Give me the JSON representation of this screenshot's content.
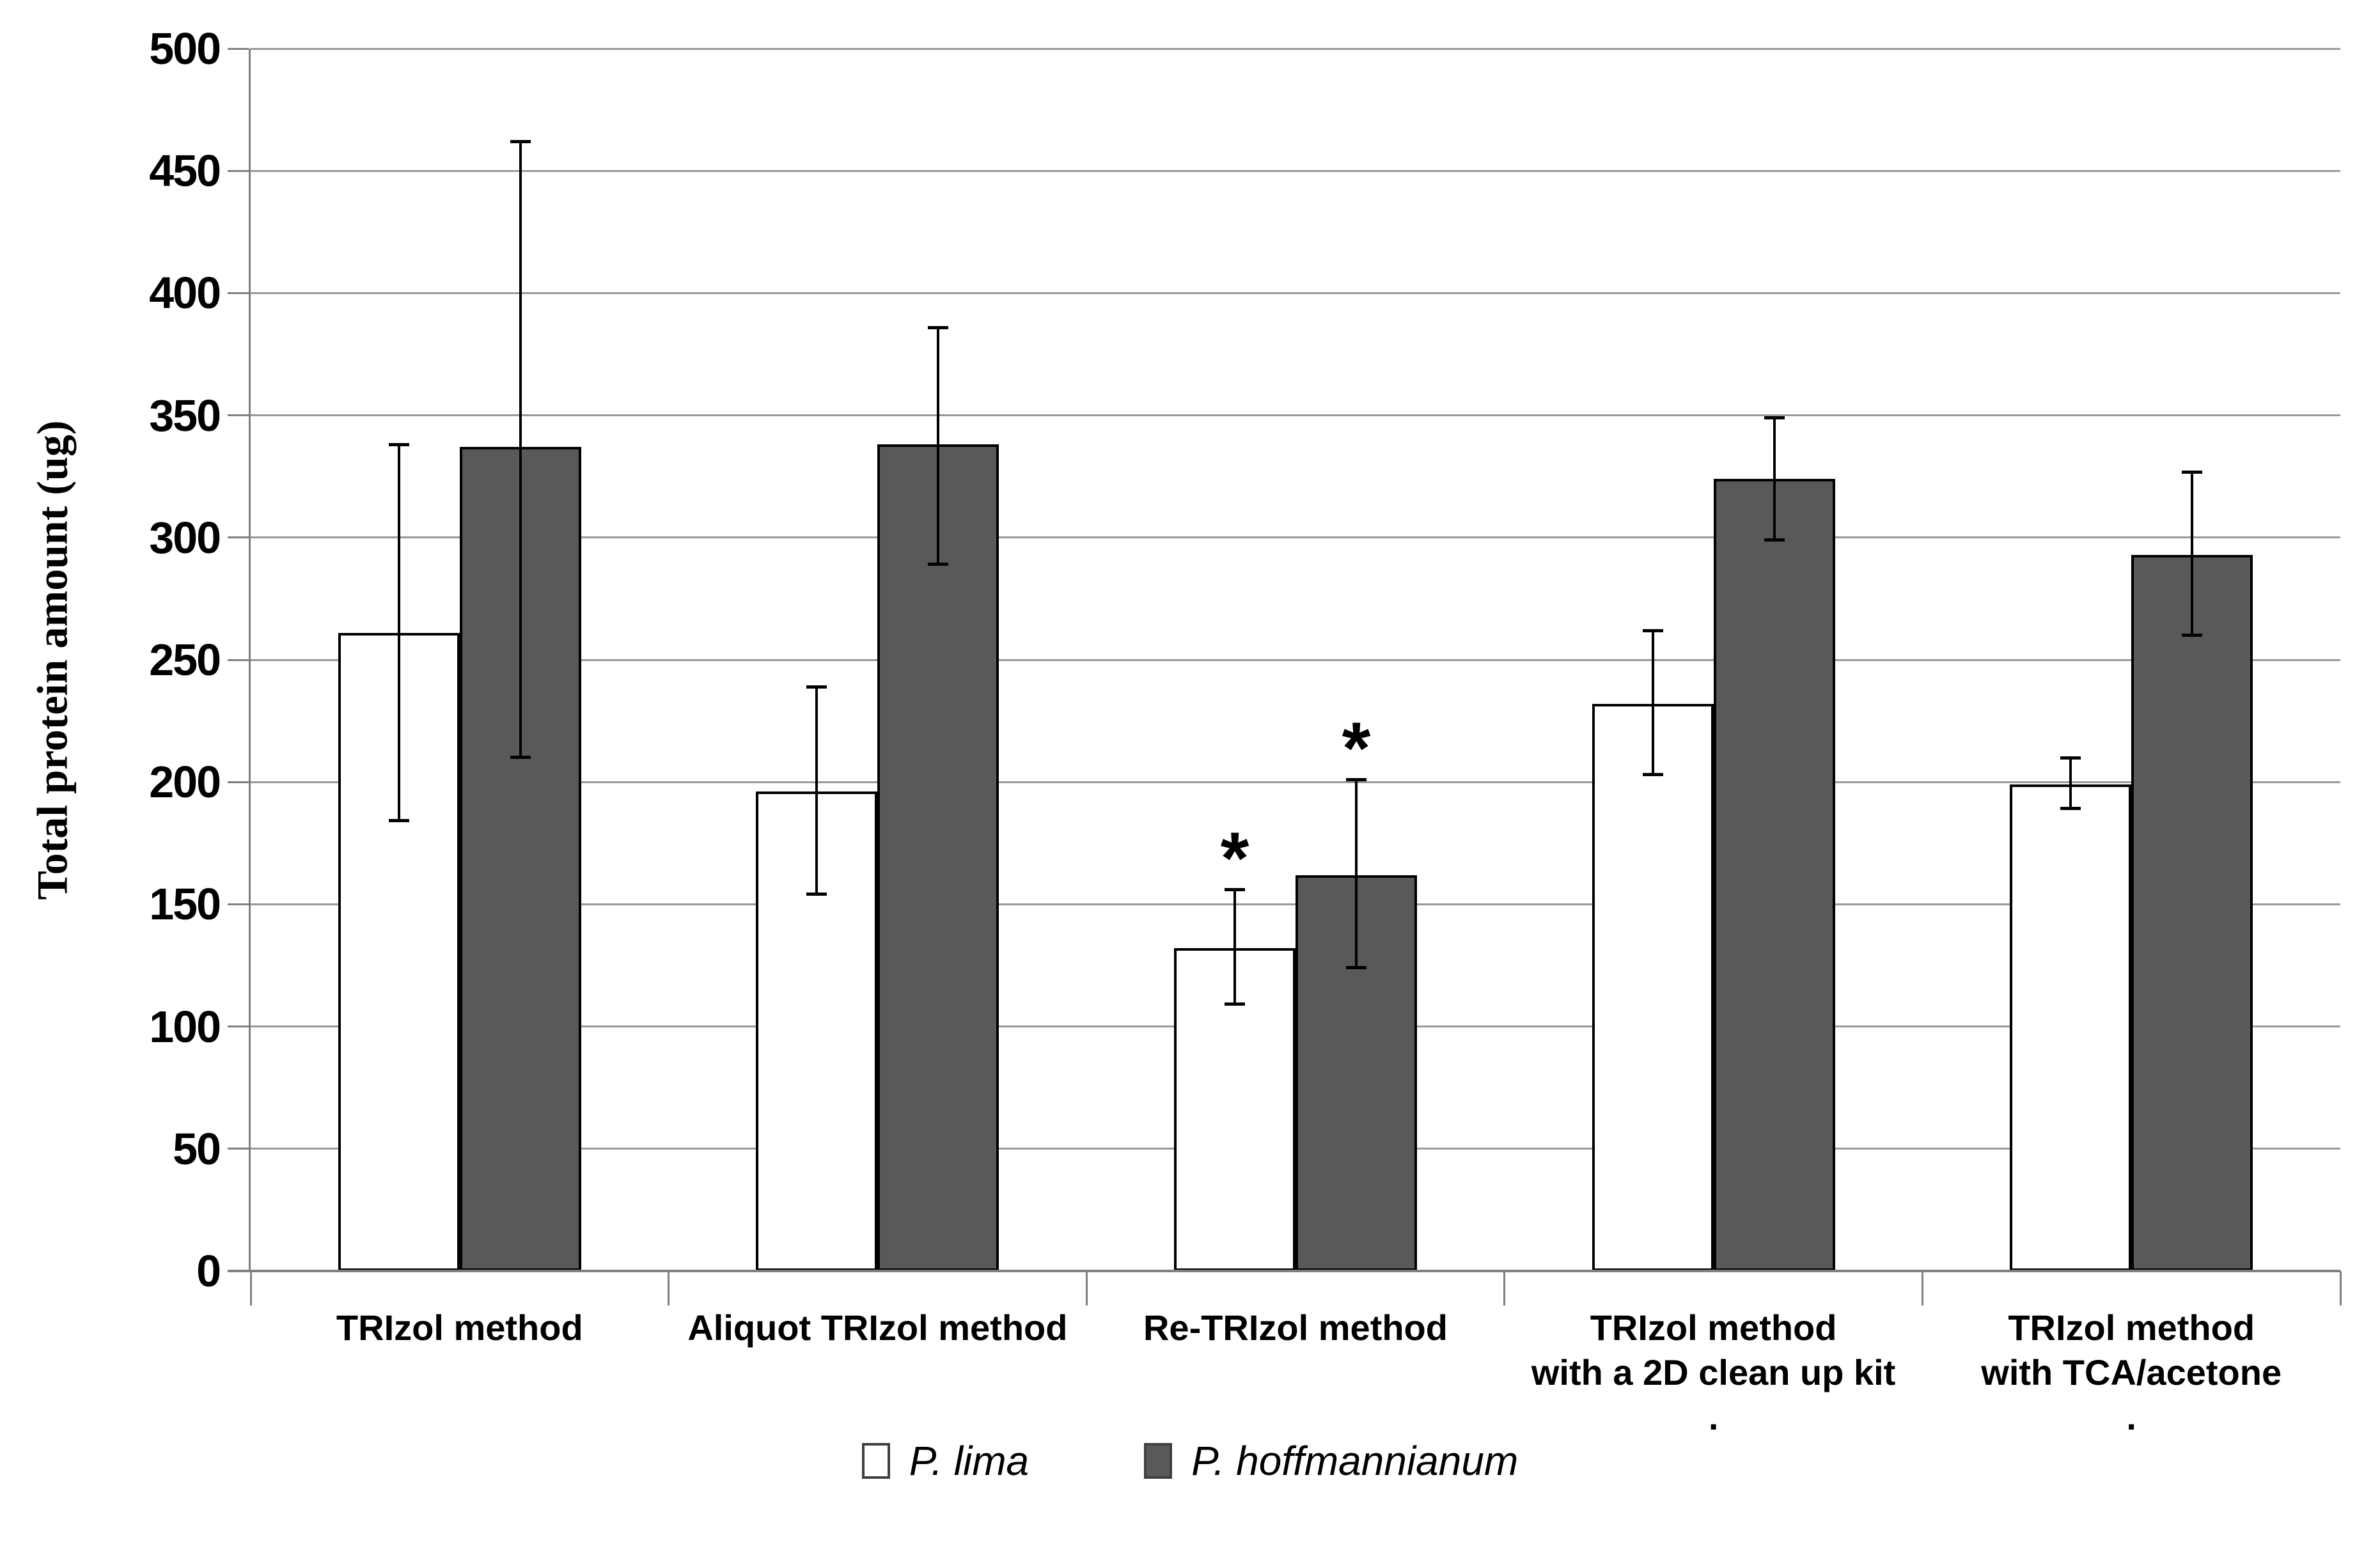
{
  "chart_data": {
    "type": "bar",
    "title": "",
    "xlabel": "",
    "ylabel": "Total protein amount (ug)",
    "ylim": [
      0,
      500
    ],
    "ytick_step": 50,
    "grid": true,
    "legend_position": "bottom",
    "significance_marker": "*",
    "categories": [
      [
        "TRIzol method"
      ],
      [
        "Aliquot TRIzol method"
      ],
      [
        "Re-TRIzol method"
      ],
      [
        "TRIzol method",
        "with a 2D clean up kit",
        "."
      ],
      [
        "TRIzol method",
        "with TCA/acetone",
        "."
      ]
    ],
    "series": [
      {
        "name": "P. lima",
        "fill": "#FFFFFF",
        "border": "#000000",
        "values": [
          261,
          196,
          132,
          232,
          199
        ],
        "err_low": [
          184,
          154,
          109,
          203,
          189
        ],
        "err_high": [
          338,
          239,
          156,
          262,
          210
        ],
        "significant": [
          false,
          false,
          true,
          false,
          false
        ]
      },
      {
        "name": "P. hoffmannianum",
        "fill": "#595959",
        "border": "#000000",
        "values": [
          337,
          338,
          162,
          324,
          293
        ],
        "err_low": [
          210,
          289,
          124,
          299,
          260
        ],
        "err_high": [
          462,
          386,
          201,
          349,
          327
        ],
        "significant": [
          false,
          false,
          true,
          false,
          false
        ]
      }
    ],
    "colors": {
      "gridline": "#999999",
      "axis": "#808080",
      "error_bar": "#000000"
    }
  }
}
